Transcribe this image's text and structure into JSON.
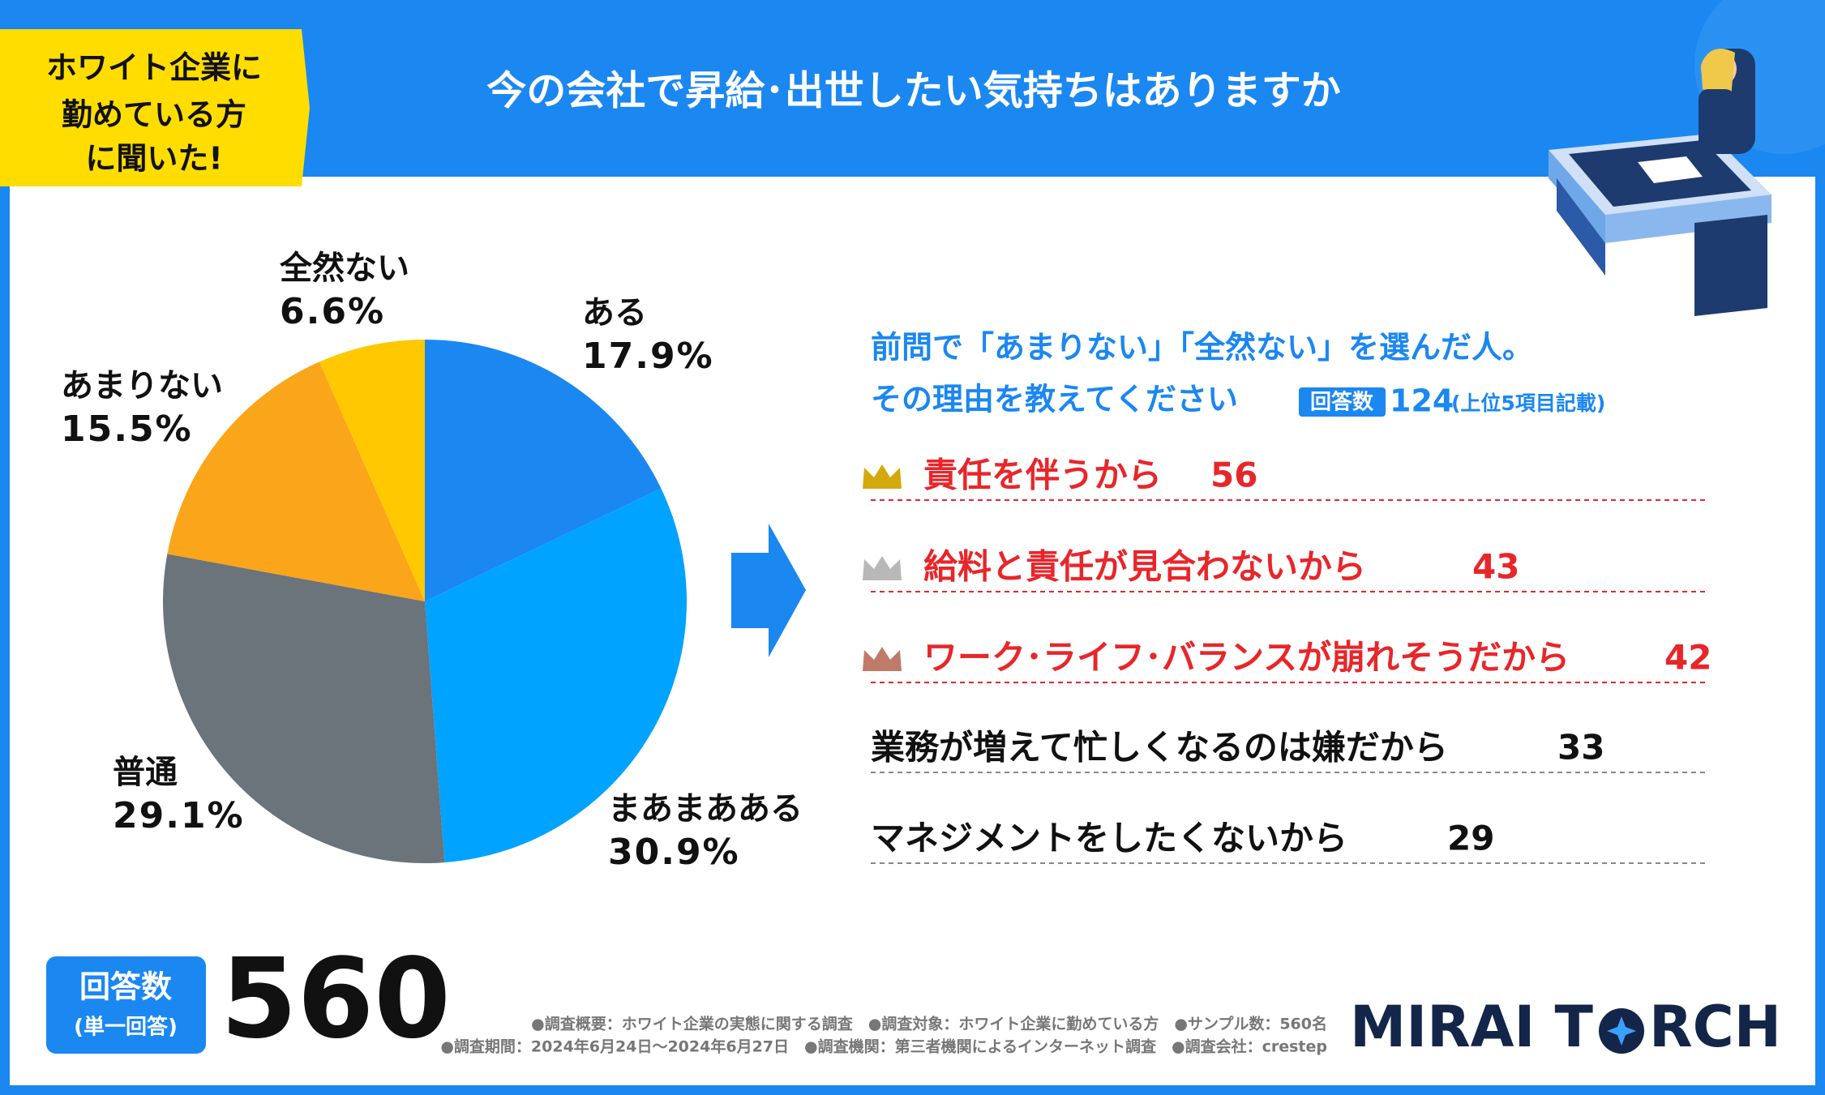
{
  "header": {
    "badge_lines": [
      "ホワイト企業に",
      "勤めている方",
      "に聞いた!"
    ],
    "title": "今の会社で昇給･出世したい気持ちはありますか"
  },
  "chart_data": {
    "type": "pie",
    "categories": [
      "ある",
      "まあまあある",
      "普通",
      "あまりない",
      "全然ない"
    ],
    "values": [
      17.9,
      30.9,
      29.1,
      15.5,
      6.6
    ],
    "value_labels": [
      "17.9%",
      "30.9%",
      "29.1%",
      "15.5%",
      "6.6%"
    ],
    "colors": [
      "#1b87f1",
      "#00a3ff",
      "#6b737b",
      "#fba51a",
      "#ffc800"
    ]
  },
  "reasons": {
    "heading_line1": "前問で「あまりない」「全然ない」を選んだ人。",
    "heading_line2": "その理由を教えてください",
    "badge": "回答数",
    "count": 124,
    "note": "(上位5項目記載)",
    "items": [
      {
        "label": "責任を伴うから",
        "value": 56
      },
      {
        "label": "給料と責任が見合わないから",
        "value": 43
      },
      {
        "label": "ワーク･ライフ･バランスが崩れそうだから",
        "value": 42
      },
      {
        "label": "業務が増えて忙しくなるのは嫌だから",
        "value": 33
      },
      {
        "label": "マネジメントをしたくないから",
        "value": 29
      }
    ]
  },
  "sample": {
    "label": "回答数",
    "sublabel": "(単一回答)",
    "count": 560
  },
  "footer": {
    "lines": [
      "●調査概要：ホワイト企業の実態に関する調査　●調査対象：ホワイト企業に勤めている方　●サンプル数：560名",
      "●調査期間：2024年6月24日～2024年6月27日　●調査機関：第三者機関によるインターネット調査　●調査会社：crestep"
    ],
    "logo_left": "MIRAI T",
    "logo_right": "RCH"
  }
}
